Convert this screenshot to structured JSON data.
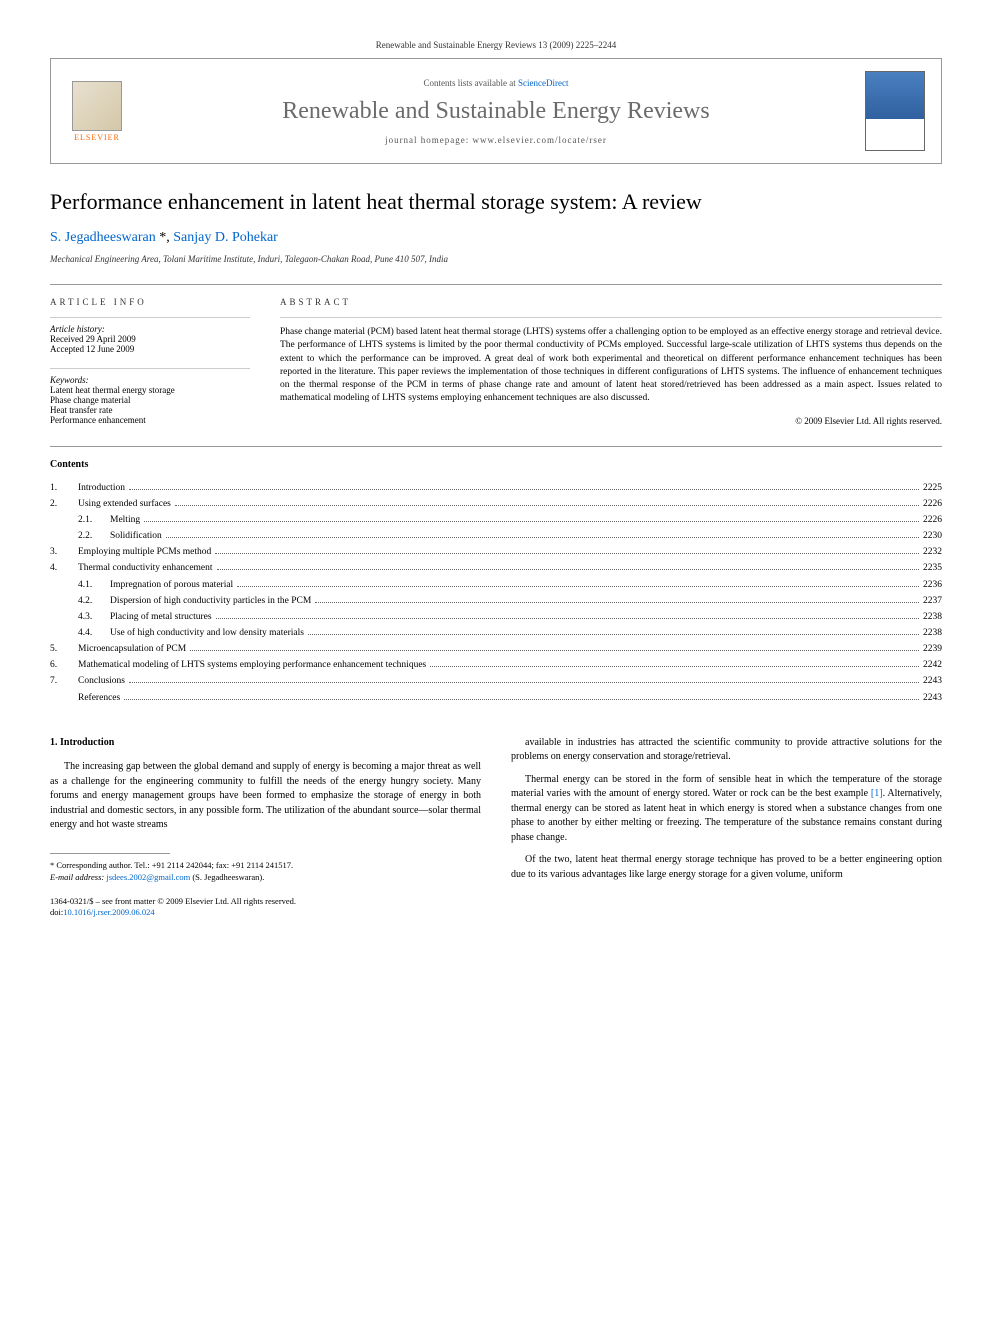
{
  "citation": "Renewable and Sustainable Energy Reviews 13 (2009) 2225–2244",
  "header": {
    "contents_prefix": "Contents lists available at ",
    "contents_link": "ScienceDirect",
    "journal_name": "Renewable and Sustainable Energy Reviews",
    "homepage_prefix": "journal homepage: ",
    "homepage_url": "www.elsevier.com/locate/rser",
    "publisher": "ELSEVIER"
  },
  "article": {
    "title": "Performance enhancement in latent heat thermal storage system: A review",
    "authors": [
      {
        "name": "S. Jegadheeswaran",
        "corresponding": true
      },
      {
        "name": "Sanjay D. Pohekar",
        "corresponding": false
      }
    ],
    "affiliation": "Mechanical Engineering Area, Tolani Maritime Institute, Induri, Talegaon-Chakan Road, Pune 410 507, India"
  },
  "info": {
    "heading": "ARTICLE INFO",
    "history_label": "Article history:",
    "received": "Received 29 April 2009",
    "accepted": "Accepted 12 June 2009",
    "keywords_label": "Keywords:",
    "keywords": [
      "Latent heat thermal energy storage",
      "Phase change material",
      "Heat transfer rate",
      "Performance enhancement"
    ]
  },
  "abstract": {
    "heading": "ABSTRACT",
    "text": "Phase change material (PCM) based latent heat thermal storage (LHTS) systems offer a challenging option to be employed as an effective energy storage and retrieval device. The performance of LHTS systems is limited by the poor thermal conductivity of PCMs employed. Successful large-scale utilization of LHTS systems thus depends on the extent to which the performance can be improved. A great deal of work both experimental and theoretical on different performance enhancement techniques has been reported in the literature. This paper reviews the implementation of those techniques in different configurations of LHTS systems. The influence of enhancement techniques on the thermal response of the PCM in terms of phase change rate and amount of latent heat stored/retrieved has been addressed as a main aspect. Issues related to mathematical modeling of LHTS systems employing enhancement techniques are also discussed.",
    "copyright": "© 2009 Elsevier Ltd. All rights reserved."
  },
  "contents": {
    "title": "Contents",
    "items": [
      {
        "num": "1.",
        "label": "Introduction",
        "page": "2225"
      },
      {
        "num": "2.",
        "label": "Using extended surfaces",
        "page": "2226"
      },
      {
        "sub": "2.1.",
        "label": "Melting",
        "page": "2226"
      },
      {
        "sub": "2.2.",
        "label": "Solidification",
        "page": "2230"
      },
      {
        "num": "3.",
        "label": "Employing multiple PCMs method",
        "page": "2232"
      },
      {
        "num": "4.",
        "label": "Thermal conductivity enhancement",
        "page": "2235"
      },
      {
        "sub": "4.1.",
        "label": "Impregnation of porous material",
        "page": "2236"
      },
      {
        "sub": "4.2.",
        "label": "Dispersion of high conductivity particles in the PCM",
        "page": "2237"
      },
      {
        "sub": "4.3.",
        "label": "Placing of metal structures",
        "page": "2238"
      },
      {
        "sub": "4.4.",
        "label": "Use of high conductivity and low density materials",
        "page": "2238"
      },
      {
        "num": "5.",
        "label": "Microencapsulation of PCM",
        "page": "2239"
      },
      {
        "num": "6.",
        "label": "Mathematical modeling of LHTS systems employing performance enhancement techniques",
        "page": "2242"
      },
      {
        "num": "7.",
        "label": "Conclusions",
        "page": "2243"
      },
      {
        "num": "",
        "label": "References",
        "page": "2243"
      }
    ]
  },
  "body": {
    "section1_heading": "1. Introduction",
    "col1_p1": "The increasing gap between the global demand and supply of energy is becoming a major threat as well as a challenge for the engineering community to fulfill the needs of the energy hungry society. Many forums and energy management groups have been formed to emphasize the storage of energy in both industrial and domestic sectors, in any possible form. The utilization of the abundant source—solar thermal energy and hot waste streams",
    "col2_p1": "available in industries has attracted the scientific community to provide attractive solutions for the problems on energy conservation and storage/retrieval.",
    "col2_p2_pre": "Thermal energy can be stored in the form of sensible heat in which the temperature of the storage material varies with the amount of energy stored. Water or rock can be the best example ",
    "col2_p2_ref": "[1]",
    "col2_p2_post": ". Alternatively, thermal energy can be stored as latent heat in which energy is stored when a substance changes from one phase to another by either melting or freezing. The temperature of the substance remains constant during phase change.",
    "col2_p3": "Of the two, latent heat thermal energy storage technique has proved to be a better engineering option due to its various advantages like large energy storage for a given volume, uniform"
  },
  "footnote": {
    "corresponding": "* Corresponding author. Tel.: +91 2114 242044; fax: +91 2114 241517.",
    "email_label": "E-mail address:",
    "email": "jsdees.2002@gmail.com",
    "email_name": "(S. Jegadheeswaran)."
  },
  "footer": {
    "issn": "1364-0321/$ – see front matter © 2009 Elsevier Ltd. All rights reserved.",
    "doi_prefix": "doi:",
    "doi": "10.1016/j.rser.2009.06.024"
  },
  "colors": {
    "link": "#0066cc",
    "elsevier_orange": "#ff6600",
    "text": "#000000",
    "journal_gray": "#6b6b6b",
    "border": "#999999"
  }
}
